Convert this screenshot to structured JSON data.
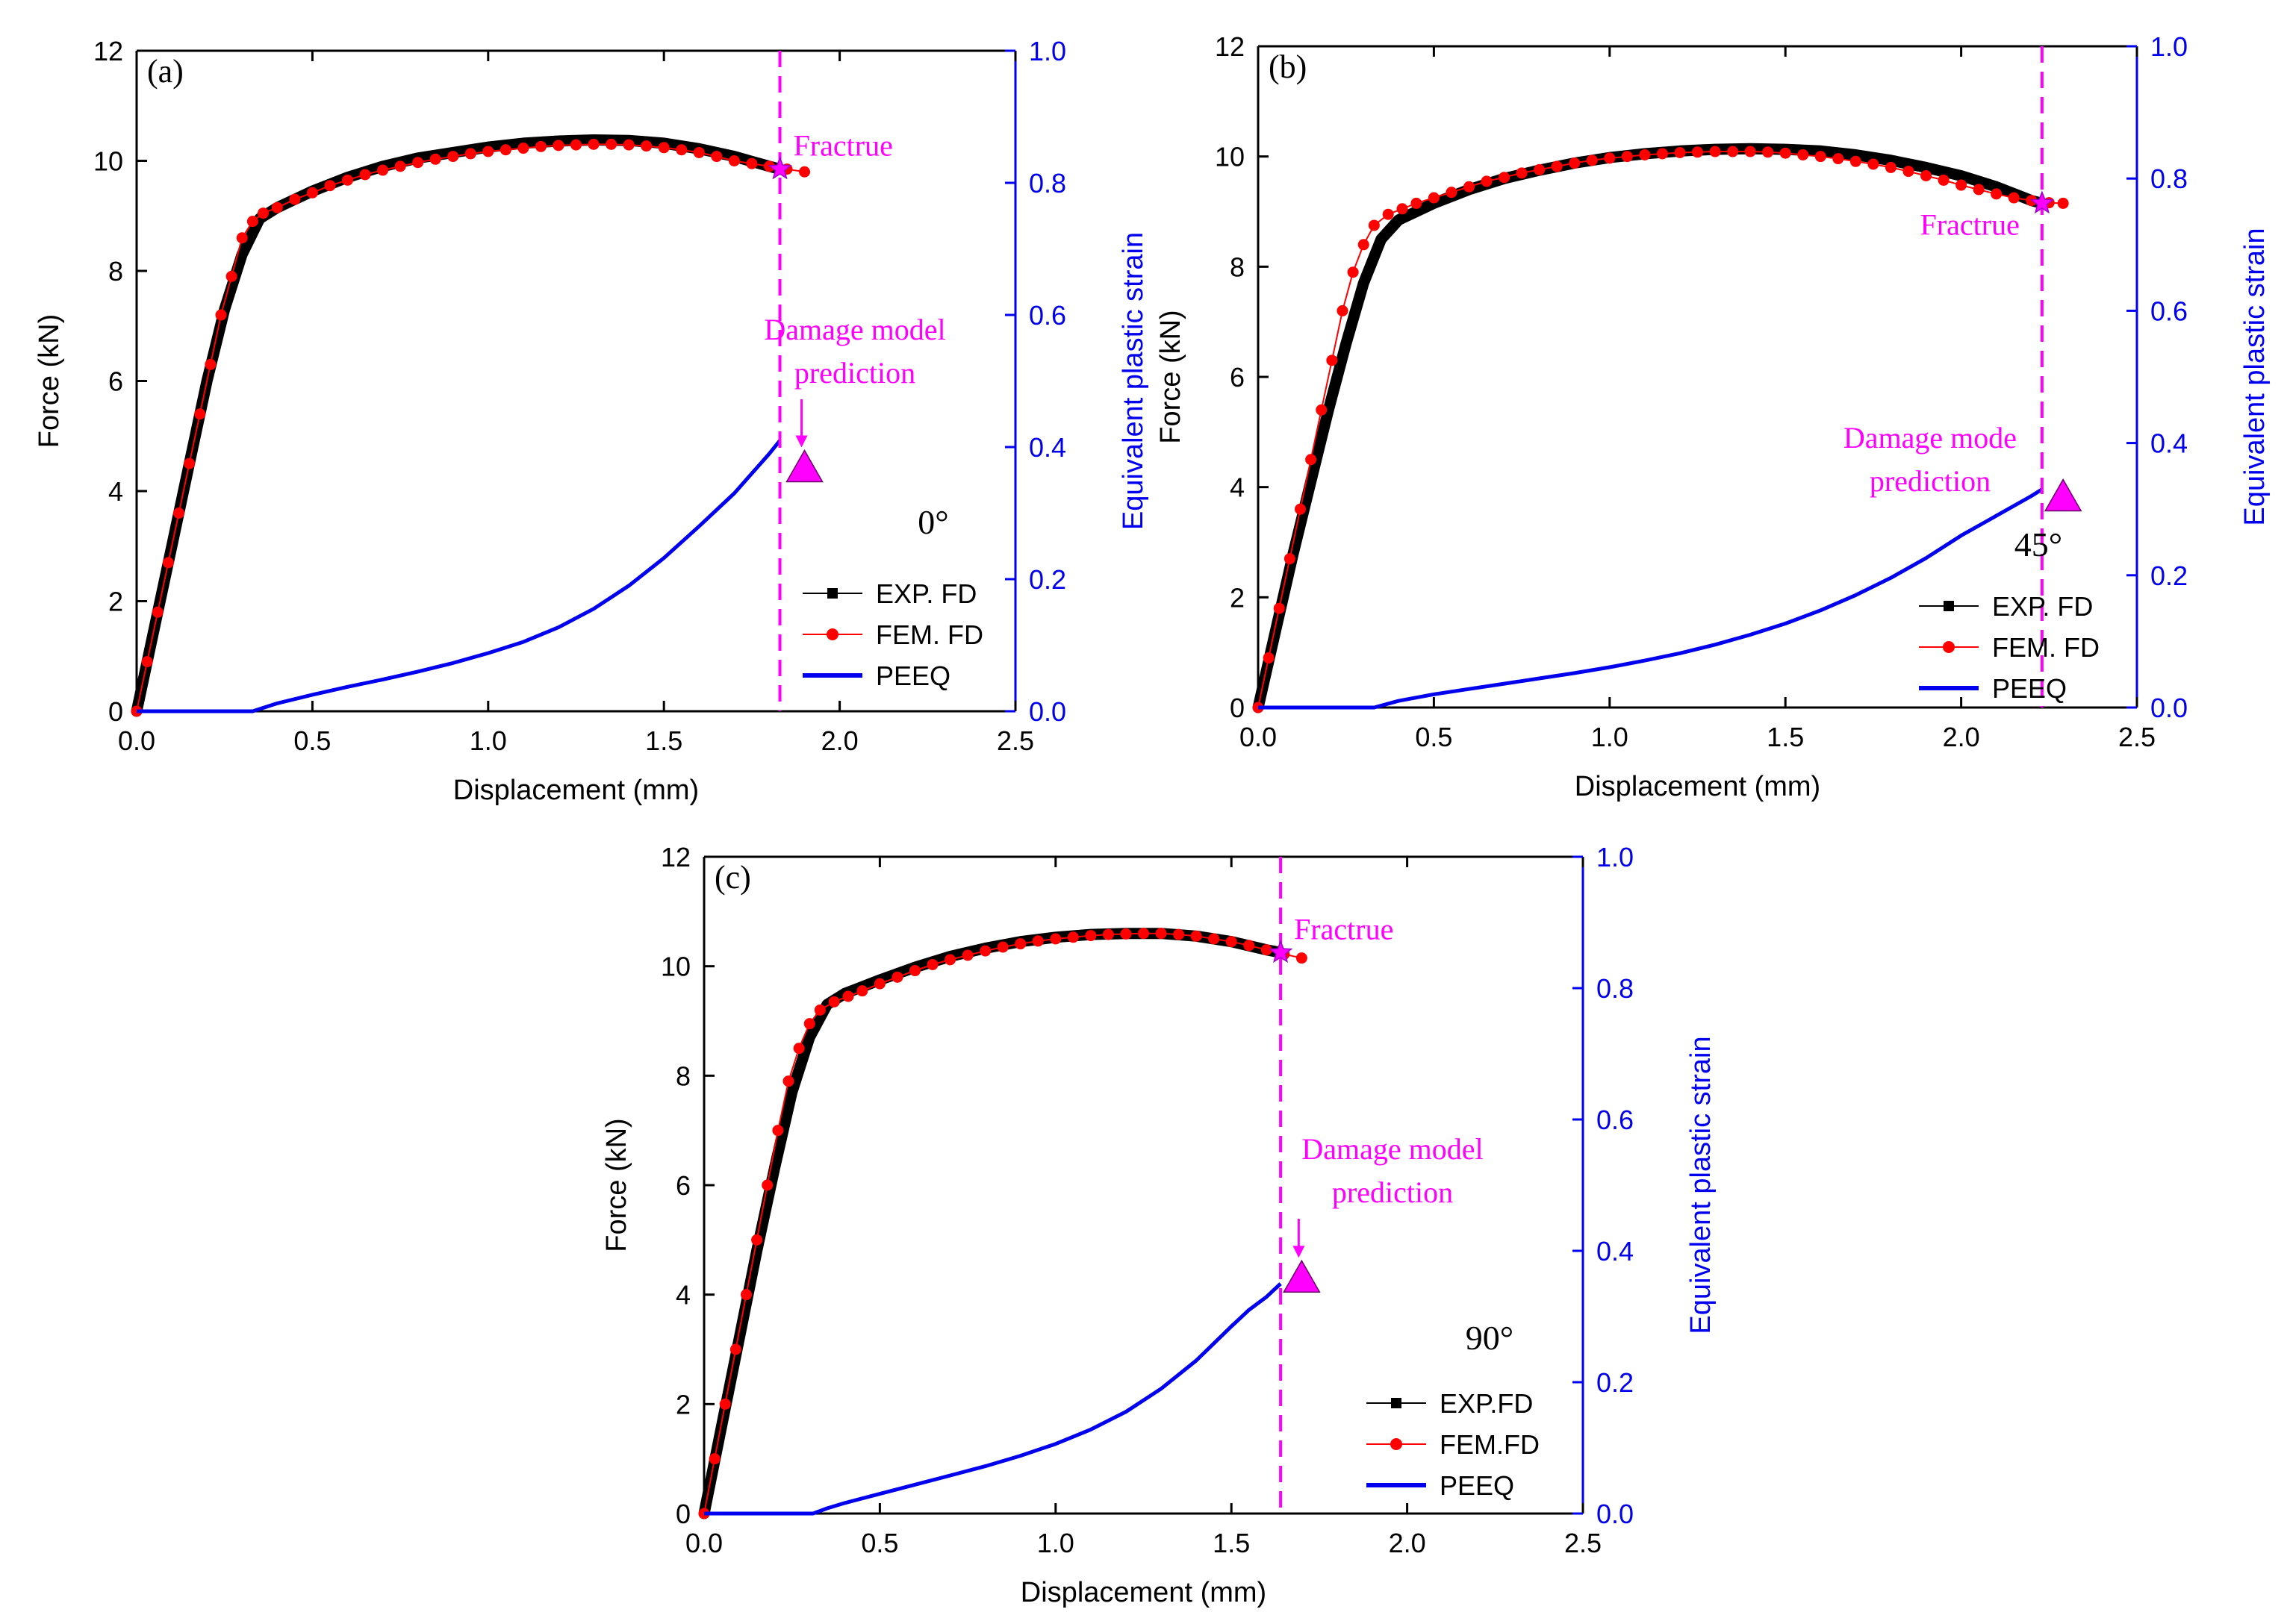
{
  "colors": {
    "axis": "#000000",
    "exp": "#000000",
    "fem": "#ff0000",
    "peeq": "#0000ee",
    "right_axis": "#0000ee",
    "annotation": "#ff00ff"
  },
  "chart_data": [
    {
      "id": "a",
      "type": "line",
      "panel_label": "(a)",
      "xlabel": "Displacement (mm)",
      "ylabel": "Force (kN)",
      "y2label": "Equivalent plastic strain",
      "xlim": [
        0,
        2.5
      ],
      "ylim": [
        0,
        12
      ],
      "y2lim": [
        0,
        1.0
      ],
      "xticks": [
        0.0,
        0.5,
        1.0,
        1.5,
        2.0,
        2.5
      ],
      "yticks": [
        0,
        2,
        4,
        6,
        8,
        10,
        12
      ],
      "y2ticks": [
        0.0,
        0.2,
        0.4,
        0.6,
        0.8,
        1.0
      ],
      "angle_label": "0°",
      "fracture_label": "Fractrue",
      "damage_label_lines": [
        "Damage model",
        "prediction"
      ],
      "fracture_x": 1.83,
      "fracture_y": 9.85,
      "damage_triangle": {
        "x": 1.9,
        "y2": 0.37
      },
      "legend": [
        {
          "key": "exp",
          "label": "EXP. FD"
        },
        {
          "key": "fem",
          "label": "FEM. FD"
        },
        {
          "key": "peeq",
          "label": "PEEQ"
        }
      ],
      "series": [
        {
          "name": "EXP. FD",
          "key": "exp",
          "x": [
            0,
            0.05,
            0.1,
            0.15,
            0.2,
            0.25,
            0.3,
            0.35,
            0.4,
            0.5,
            0.6,
            0.7,
            0.8,
            0.9,
            1.0,
            1.1,
            1.2,
            1.3,
            1.4,
            1.5,
            1.6,
            1.7,
            1.8,
            1.83
          ],
          "y": [
            0,
            1.5,
            3.0,
            4.5,
            6.0,
            7.3,
            8.3,
            8.95,
            9.15,
            9.45,
            9.7,
            9.9,
            10.05,
            10.15,
            10.25,
            10.32,
            10.36,
            10.38,
            10.37,
            10.32,
            10.22,
            10.08,
            9.9,
            9.85
          ]
        },
        {
          "name": "FEM. FD",
          "key": "fem",
          "x": [
            0,
            0.03,
            0.06,
            0.09,
            0.12,
            0.15,
            0.18,
            0.21,
            0.24,
            0.27,
            0.3,
            0.33,
            0.36,
            0.4,
            0.45,
            0.5,
            0.55,
            0.6,
            0.65,
            0.7,
            0.75,
            0.8,
            0.85,
            0.9,
            0.95,
            1.0,
            1.05,
            1.1,
            1.15,
            1.2,
            1.25,
            1.3,
            1.35,
            1.4,
            1.45,
            1.5,
            1.55,
            1.6,
            1.65,
            1.7,
            1.75,
            1.8,
            1.85,
            1.9
          ],
          "y": [
            0,
            0.9,
            1.8,
            2.7,
            3.6,
            4.5,
            5.4,
            6.3,
            7.2,
            7.9,
            8.6,
            8.9,
            9.05,
            9.15,
            9.3,
            9.42,
            9.55,
            9.65,
            9.75,
            9.83,
            9.9,
            9.97,
            10.03,
            10.08,
            10.13,
            10.17,
            10.2,
            10.23,
            10.26,
            10.28,
            10.29,
            10.3,
            10.3,
            10.29,
            10.27,
            10.24,
            10.2,
            10.15,
            10.08,
            10.0,
            9.95,
            9.9,
            9.85,
            9.8
          ]
        },
        {
          "name": "PEEQ",
          "key": "peeq",
          "axis": "y2",
          "x": [
            0,
            0.33,
            0.4,
            0.5,
            0.6,
            0.7,
            0.8,
            0.9,
            1.0,
            1.1,
            1.2,
            1.3,
            1.4,
            1.5,
            1.6,
            1.7,
            1.75,
            1.8,
            1.83
          ],
          "y": [
            0,
            0,
            0.012,
            0.025,
            0.037,
            0.048,
            0.06,
            0.073,
            0.088,
            0.105,
            0.127,
            0.155,
            0.19,
            0.232,
            0.28,
            0.33,
            0.36,
            0.39,
            0.41
          ]
        }
      ]
    },
    {
      "id": "b",
      "type": "line",
      "panel_label": "(b)",
      "xlabel": "Displacement (mm)",
      "ylabel": "Force (kN)",
      "y2label": "Equivalent plastic strain",
      "xlim": [
        0,
        2.5
      ],
      "ylim": [
        0,
        12
      ],
      "y2lim": [
        0,
        1.0
      ],
      "xticks": [
        0.0,
        0.5,
        1.0,
        1.5,
        2.0,
        2.5
      ],
      "yticks": [
        0,
        2,
        4,
        6,
        8,
        10,
        12
      ],
      "y2ticks": [
        0.0,
        0.2,
        0.4,
        0.6,
        0.8,
        1.0
      ],
      "angle_label": "45°",
      "fracture_label": "Fractrue",
      "damage_label_lines": [
        "Damage mode",
        "prediction"
      ],
      "fracture_x": 2.23,
      "fracture_y": 9.15,
      "damage_triangle": {
        "x": 2.29,
        "y2": 0.32
      },
      "legend": [
        {
          "key": "exp",
          "label": "EXP. FD"
        },
        {
          "key": "fem",
          "label": "FEM. FD"
        },
        {
          "key": "peeq",
          "label": "PEEQ"
        }
      ],
      "series": [
        {
          "name": "EXP. FD",
          "key": "exp",
          "x": [
            0,
            0.05,
            0.1,
            0.15,
            0.2,
            0.25,
            0.3,
            0.35,
            0.4,
            0.5,
            0.6,
            0.7,
            0.8,
            0.9,
            1.0,
            1.1,
            1.2,
            1.3,
            1.4,
            1.5,
            1.6,
            1.7,
            1.8,
            1.9,
            2.0,
            2.1,
            2.2,
            2.23
          ],
          "y": [
            0,
            1.4,
            2.8,
            4.1,
            5.4,
            6.6,
            7.7,
            8.5,
            8.85,
            9.15,
            9.4,
            9.6,
            9.75,
            9.88,
            9.98,
            10.05,
            10.1,
            10.13,
            10.14,
            10.13,
            10.1,
            10.03,
            9.93,
            9.8,
            9.65,
            9.45,
            9.2,
            9.15
          ]
        },
        {
          "name": "FEM. FD",
          "key": "fem",
          "x": [
            0,
            0.03,
            0.06,
            0.09,
            0.12,
            0.15,
            0.18,
            0.21,
            0.24,
            0.27,
            0.3,
            0.33,
            0.37,
            0.41,
            0.45,
            0.5,
            0.55,
            0.6,
            0.65,
            0.7,
            0.75,
            0.8,
            0.85,
            0.9,
            0.95,
            1.0,
            1.05,
            1.1,
            1.15,
            1.2,
            1.25,
            1.3,
            1.35,
            1.4,
            1.45,
            1.5,
            1.55,
            1.6,
            1.65,
            1.7,
            1.75,
            1.8,
            1.85,
            1.9,
            1.95,
            2.0,
            2.05,
            2.1,
            2.15,
            2.2,
            2.25,
            2.29
          ],
          "y": [
            0,
            0.9,
            1.8,
            2.7,
            3.6,
            4.5,
            5.4,
            6.3,
            7.2,
            7.9,
            8.4,
            8.75,
            8.95,
            9.05,
            9.15,
            9.25,
            9.35,
            9.45,
            9.55,
            9.62,
            9.7,
            9.76,
            9.82,
            9.88,
            9.93,
            9.97,
            10.0,
            10.03,
            10.05,
            10.07,
            10.08,
            10.09,
            10.09,
            10.09,
            10.08,
            10.06,
            10.03,
            10.0,
            9.96,
            9.91,
            9.86,
            9.8,
            9.73,
            9.65,
            9.57,
            9.48,
            9.4,
            9.32,
            9.25,
            9.2,
            9.16,
            9.15
          ]
        },
        {
          "name": "PEEQ",
          "key": "peeq",
          "axis": "y2",
          "x": [
            0,
            0.33,
            0.4,
            0.5,
            0.6,
            0.7,
            0.8,
            0.9,
            1.0,
            1.1,
            1.2,
            1.3,
            1.4,
            1.5,
            1.6,
            1.7,
            1.8,
            1.9,
            2.0,
            2.1,
            2.2,
            2.23
          ],
          "y": [
            0,
            0,
            0.01,
            0.02,
            0.028,
            0.036,
            0.044,
            0.052,
            0.061,
            0.071,
            0.082,
            0.095,
            0.11,
            0.127,
            0.147,
            0.17,
            0.196,
            0.226,
            0.26,
            0.29,
            0.32,
            0.33
          ]
        }
      ]
    },
    {
      "id": "c",
      "type": "line",
      "panel_label": "(c)",
      "xlabel": "Displacement (mm)",
      "ylabel": "Force (kN)",
      "y2label": "Equivalent plastic strain",
      "xlim": [
        0,
        2.5
      ],
      "ylim": [
        0,
        12
      ],
      "y2lim": [
        0,
        1.0
      ],
      "xticks": [
        0.0,
        0.5,
        1.0,
        1.5,
        2.0,
        2.5
      ],
      "yticks": [
        0,
        2,
        4,
        6,
        8,
        10,
        12
      ],
      "y2ticks": [
        0.0,
        0.2,
        0.4,
        0.6,
        0.8,
        1.0
      ],
      "angle_label": "90°",
      "fracture_label": "Fractrue",
      "damage_label_lines": [
        "Damage model",
        "prediction"
      ],
      "fracture_x": 1.64,
      "fracture_y": 10.25,
      "damage_triangle": {
        "x": 1.7,
        "y2": 0.36
      },
      "legend": [
        {
          "key": "exp",
          "label": "EXP.FD"
        },
        {
          "key": "fem",
          "label": "FEM.FD"
        },
        {
          "key": "peeq",
          "label": "PEEQ"
        }
      ],
      "series": [
        {
          "name": "EXP.FD",
          "key": "exp",
          "x": [
            0,
            0.05,
            0.1,
            0.15,
            0.2,
            0.25,
            0.3,
            0.35,
            0.4,
            0.5,
            0.6,
            0.7,
            0.8,
            0.9,
            1.0,
            1.1,
            1.2,
            1.3,
            1.4,
            1.5,
            1.6,
            1.64
          ],
          "y": [
            0,
            1.6,
            3.2,
            4.8,
            6.3,
            7.7,
            8.7,
            9.3,
            9.5,
            9.75,
            9.98,
            10.18,
            10.33,
            10.45,
            10.53,
            10.58,
            10.6,
            10.6,
            10.55,
            10.45,
            10.3,
            10.25
          ]
        },
        {
          "name": "FEM.FD",
          "key": "fem",
          "x": [
            0,
            0.03,
            0.06,
            0.09,
            0.12,
            0.15,
            0.18,
            0.21,
            0.24,
            0.27,
            0.3,
            0.33,
            0.37,
            0.41,
            0.45,
            0.5,
            0.55,
            0.6,
            0.65,
            0.7,
            0.75,
            0.8,
            0.85,
            0.9,
            0.95,
            1.0,
            1.05,
            1.1,
            1.15,
            1.2,
            1.25,
            1.3,
            1.35,
            1.4,
            1.45,
            1.5,
            1.55,
            1.6,
            1.65,
            1.7
          ],
          "y": [
            0,
            1.0,
            2.0,
            3.0,
            4.0,
            5.0,
            6.0,
            7.0,
            7.9,
            8.5,
            8.95,
            9.2,
            9.35,
            9.45,
            9.55,
            9.68,
            9.8,
            9.92,
            10.03,
            10.12,
            10.2,
            10.28,
            10.35,
            10.41,
            10.46,
            10.5,
            10.53,
            10.56,
            10.58,
            10.59,
            10.6,
            10.6,
            10.58,
            10.55,
            10.5,
            10.45,
            10.38,
            10.3,
            10.22,
            10.15
          ]
        },
        {
          "name": "PEEQ",
          "key": "peeq",
          "axis": "y2",
          "x": [
            0,
            0.31,
            0.35,
            0.4,
            0.5,
            0.6,
            0.7,
            0.8,
            0.9,
            1.0,
            1.1,
            1.2,
            1.3,
            1.4,
            1.5,
            1.55,
            1.6,
            1.64
          ],
          "y": [
            0,
            0,
            0.008,
            0.016,
            0.03,
            0.044,
            0.058,
            0.072,
            0.088,
            0.106,
            0.128,
            0.155,
            0.19,
            0.233,
            0.285,
            0.31,
            0.33,
            0.35
          ]
        }
      ]
    }
  ]
}
